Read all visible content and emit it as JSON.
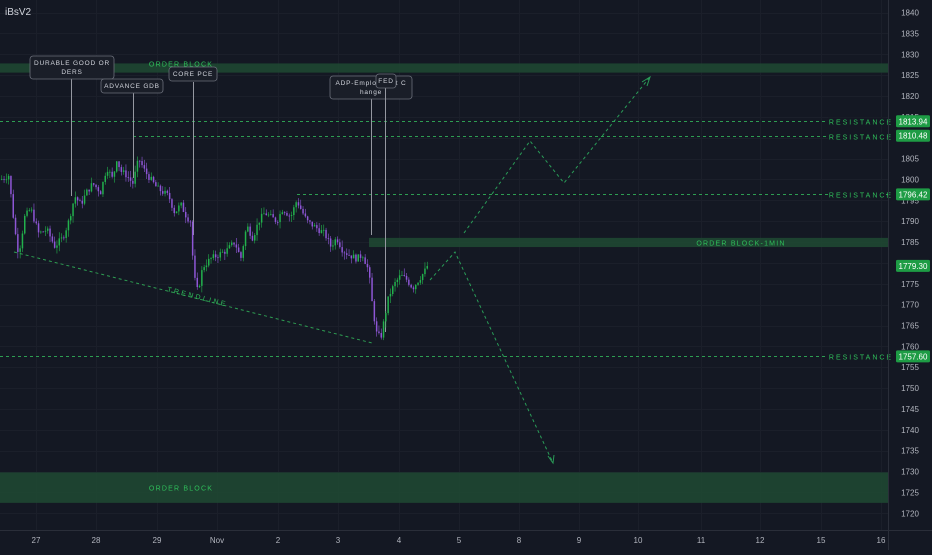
{
  "symbol": "iBsV2",
  "colors": {
    "background": "#141823",
    "up": "#22b14c",
    "down": "#8e56d6",
    "zone": "#1f4a33",
    "level": "#2e9d52",
    "label_text": "#2fbf5a",
    "price_tag": "#1e9c45",
    "callout_bg": "#1a1e28",
    "axis_text": "#b2b5be",
    "projection": "#2a9d58"
  },
  "chart_data": {
    "type": "candlestick",
    "x_ticks": [
      "27",
      "28",
      "29",
      "Nov",
      "2",
      "3",
      "4",
      "5",
      "8",
      "9",
      "10",
      "11",
      "12",
      "15",
      "16"
    ],
    "ylim": [
      1716,
      1843
    ],
    "y_ticks": [
      1840,
      1835,
      1830,
      1825,
      1820,
      1815,
      1810,
      1805,
      1800,
      1795,
      1790,
      1785,
      1780,
      1775,
      1770,
      1765,
      1760,
      1755,
      1750,
      1745,
      1740,
      1735,
      1730,
      1725,
      1720
    ],
    "price_tags": [
      {
        "value": "1813.94",
        "price": 1813.94
      },
      {
        "value": "1810.48",
        "price": 1810.48
      },
      {
        "value": "1796.42",
        "price": 1796.42
      },
      {
        "value": "1779.30",
        "price": 1779.3
      },
      {
        "value": "1757.60",
        "price": 1757.6
      }
    ],
    "zones": [
      {
        "label": "ORDER BLOCK",
        "from": 1825.6,
        "to": 1827.8
      },
      {
        "label": "ORDER BLOCK-1MIN",
        "from": 1783.8,
        "to": 1786.0
      },
      {
        "label": "ORDER BLOCK",
        "from": 1722.5,
        "to": 1729.8
      }
    ],
    "levels": [
      {
        "label": "RESISTANCE",
        "price": 1813.94
      },
      {
        "label": "RESISTANCE",
        "price": 1810.48
      },
      {
        "label": "RESISTANCE",
        "price": 1796.42
      },
      {
        "label": "RESISTANCE",
        "price": 1757.6
      }
    ],
    "trendline_label": "TRENDLINE",
    "events": [
      {
        "label_lines": [
          "DURABLE GOOD OR",
          "DERS"
        ]
      },
      {
        "label_lines": [
          "ADVANCE GDB"
        ]
      },
      {
        "label_lines": [
          "CORE PCE"
        ]
      },
      {
        "label_lines": [
          "ADP-Employment C",
          "hange"
        ]
      },
      {
        "label_lines": [
          "FED"
        ]
      }
    ],
    "last_price": 1779.3
  }
}
